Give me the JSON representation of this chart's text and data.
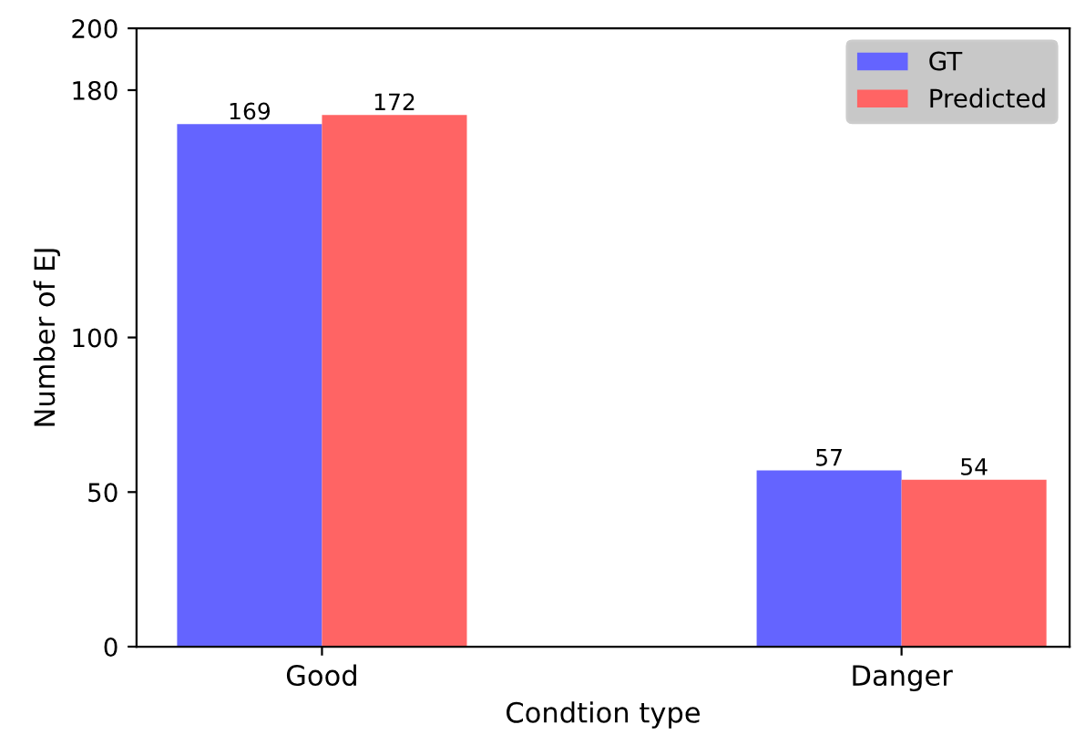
{
  "chart_data": {
    "type": "bar",
    "xlabel": "Condtion type",
    "ylabel": "Number of EJ",
    "categories": [
      "Good",
      "Danger"
    ],
    "series": [
      {
        "name": "GT",
        "color": "#6464ff",
        "values": [
          169,
          57
        ]
      },
      {
        "name": "Predicted",
        "color": "#ff6464",
        "values": [
          172,
          54
        ]
      }
    ],
    "ylim": [
      0,
      200
    ],
    "yticks": [
      0,
      50,
      100,
      180,
      200
    ],
    "data_labels": true,
    "legend": "top right",
    "grid": false
  }
}
